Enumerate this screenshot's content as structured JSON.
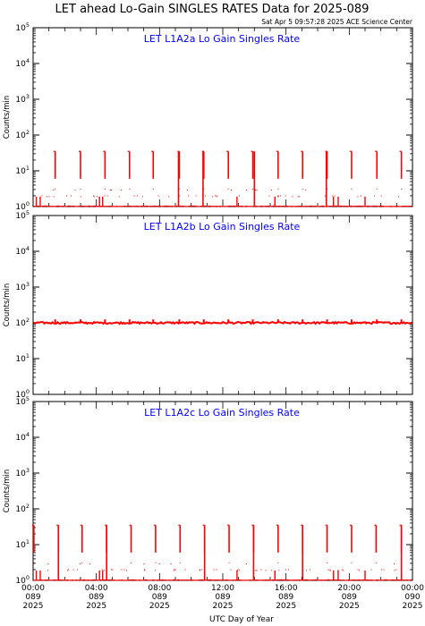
{
  "title": "LET ahead Lo-Gain SINGLES RATES Data for 2025-089",
  "timestamp": "Sat Apr  5 09:57:28 2025 ACE Science Center",
  "xlabel": "UTC Day of Year",
  "colors": {
    "series": "#ff0000",
    "panel_title": "#0000ff",
    "axes": "#000000"
  },
  "chart_data": [
    {
      "type": "line",
      "title": "LET L1A2a Lo Gain Singles Rate",
      "ylabel": "Counts/min",
      "yscale": "log",
      "ylim": [
        1,
        100000
      ],
      "ytick_labels": [
        "10^0",
        "10^1",
        "10^2",
        "10^3",
        "10^4",
        "10^5"
      ],
      "xlim_hours": [
        0,
        24
      ],
      "baseline": 1,
      "spike_peak": 35,
      "spike_hours": [
        1.4,
        3.0,
        4.55,
        6.1,
        7.6,
        9.25,
        10.8,
        12.35,
        13.9,
        15.5,
        17.05,
        18.6,
        20.15,
        21.75,
        23.3
      ],
      "tall_spike_hours": [
        9.2,
        10.75,
        14.0,
        18.55
      ]
    },
    {
      "type": "line",
      "title": "LET L1A2b Lo Gain Singles Rate",
      "ylabel": "Counts/min",
      "yscale": "log",
      "ylim": [
        1,
        100000
      ],
      "ytick_labels": [
        "10^0",
        "10^1",
        "10^2",
        "10^3",
        "10^4",
        "10^5"
      ],
      "xlim_hours": [
        0,
        24
      ],
      "baseline": 100,
      "spike_peak": 125,
      "spike_hours": [
        1.4,
        3.0,
        4.55,
        6.1,
        7.6,
        9.25,
        10.8,
        12.35,
        13.9,
        15.5,
        17.05,
        18.6,
        20.15,
        21.75,
        23.3
      ],
      "tall_spike_hours": []
    },
    {
      "type": "line",
      "title": "LET L1A2c Lo Gain Singles Rate",
      "ylabel": "Counts/min",
      "yscale": "log",
      "ylim": [
        1,
        100000
      ],
      "ytick_labels": [
        "10^0",
        "10^1",
        "10^2",
        "10^3",
        "10^4",
        "10^5"
      ],
      "xlim_hours": [
        0,
        24
      ],
      "baseline": 1,
      "spike_peak": 35,
      "spike_hours": [
        0.05,
        1.6,
        3.1,
        4.65,
        6.2,
        7.75,
        9.3,
        10.85,
        12.4,
        13.95,
        15.5,
        17.05,
        18.6,
        20.15,
        21.7,
        23.3
      ],
      "tall_spike_hours": [
        1.6,
        4.65,
        10.85,
        13.95,
        17.05,
        23.3
      ]
    }
  ],
  "xticks": [
    {
      "time": "00:00",
      "doy": "089",
      "year": "2025"
    },
    {
      "time": "04:00",
      "doy": "089",
      "year": "2025"
    },
    {
      "time": "08:00",
      "doy": "089",
      "year": "2025"
    },
    {
      "time": "12:00",
      "doy": "089",
      "year": "2025"
    },
    {
      "time": "16:00",
      "doy": "089",
      "year": "2025"
    },
    {
      "time": "20:00",
      "doy": "089",
      "year": "2025"
    },
    {
      "time": "00:00",
      "doy": "090",
      "year": "2025"
    }
  ]
}
